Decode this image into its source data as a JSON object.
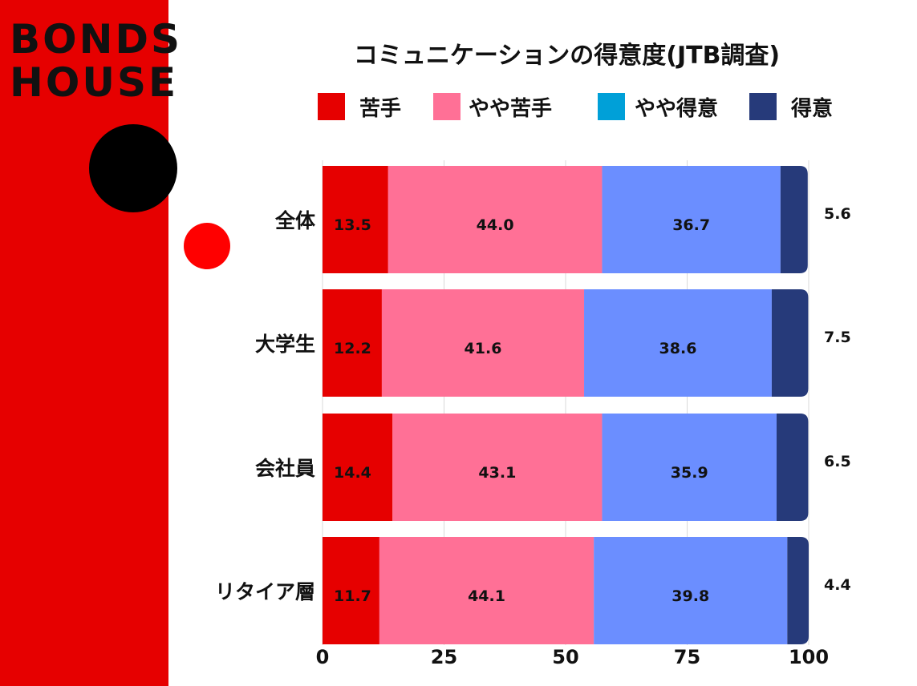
{
  "logo": {
    "line1": "BONDS",
    "line2": "HOUSE"
  },
  "chart_data": {
    "type": "bar",
    "orientation": "horizontal",
    "stacked": true,
    "title": "コミュニケーションの得意度(JTB調査)",
    "categories": [
      "全体",
      "大学生",
      "会社員",
      "リタイア層"
    ],
    "series": [
      {
        "name": "苦手",
        "values": [
          13.5,
          12.2,
          14.4,
          11.7
        ],
        "color": "#e60000"
      },
      {
        "name": "やや苦手",
        "values": [
          44.0,
          41.6,
          43.1,
          44.1
        ],
        "color": "#ff7096"
      },
      {
        "name": "やや得意",
        "values": [
          36.7,
          38.6,
          35.9,
          39.8
        ],
        "color": "#6b8eff",
        "legend_color": "#00a0d8"
      },
      {
        "name": "得意",
        "values": [
          5.6,
          7.5,
          6.5,
          4.4
        ],
        "color": "#263a7a"
      }
    ],
    "value_labels": [
      [
        "13.5",
        "44.0",
        "36.7",
        "5.6"
      ],
      [
        "12.2",
        "41.6",
        "38.6",
        "7.5"
      ],
      [
        "14.4",
        "43.1",
        "35.9",
        "6.5"
      ],
      [
        "11.7",
        "44.1",
        "39.8",
        "4.4"
      ]
    ],
    "xlim": [
      0,
      100
    ],
    "xticks": [
      "0",
      "25",
      "50",
      "75",
      "100"
    ],
    "xlabel": "",
    "ylabel": "",
    "grid": true,
    "legend_position": "top"
  }
}
